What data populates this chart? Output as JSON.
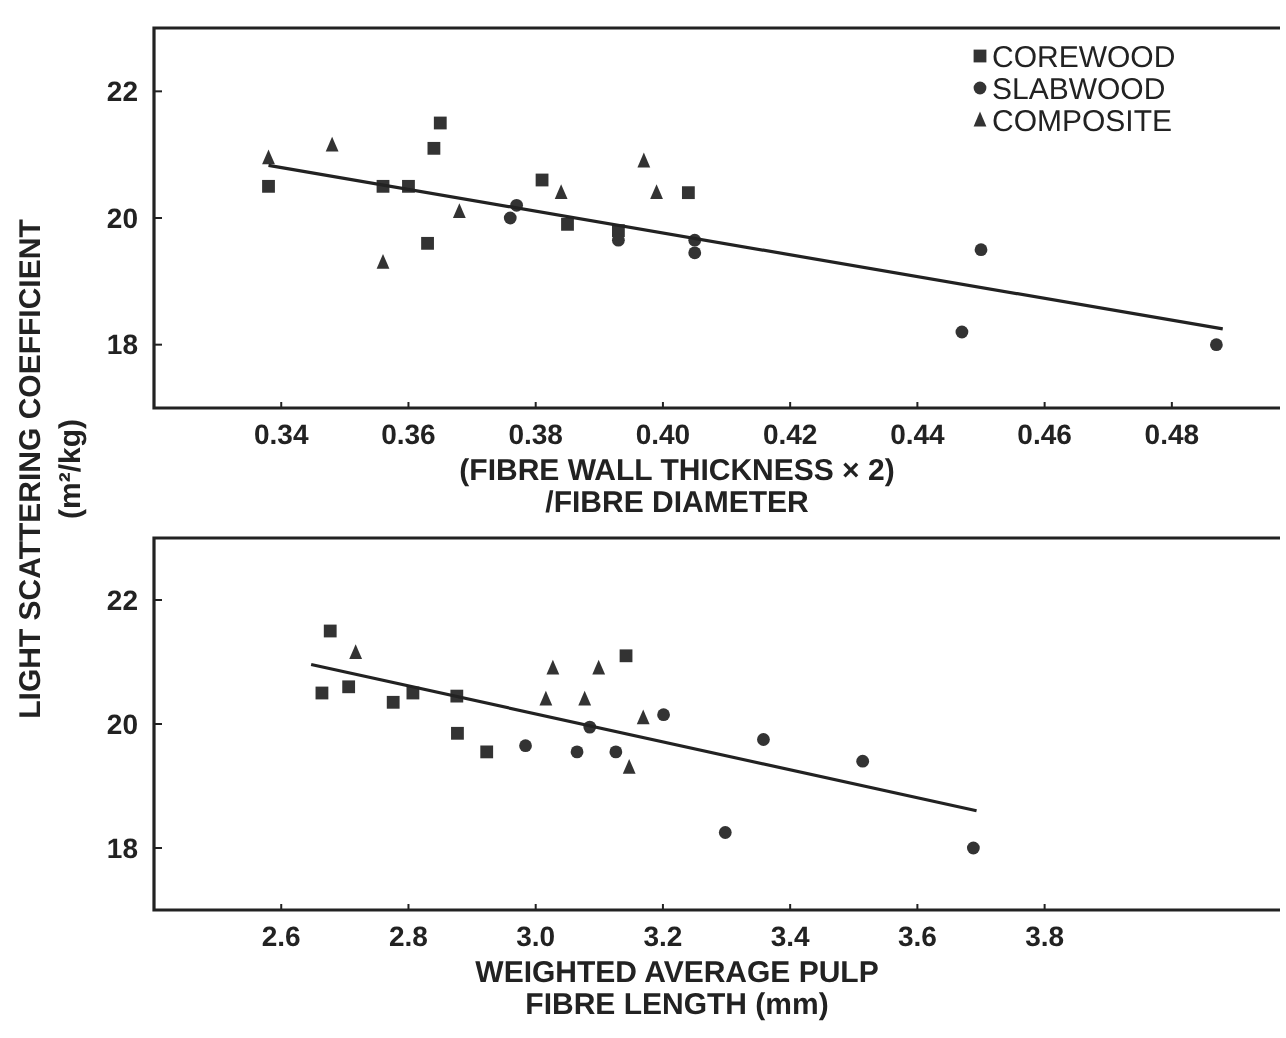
{
  "chart_data": [
    {
      "type": "scatter",
      "xlabel": "(FIBRE WALL THICKNESS × 2)\n/FIBRE DIAMETER",
      "ylabel": "LIGHT SCATTERING COEFFICIENT\n(m²/kg)",
      "xlim": [
        0.32,
        0.497
      ],
      "ylim": [
        17,
        23
      ],
      "xticks": [
        0.34,
        0.36,
        0.38,
        {
          "value": 0.4,
          "label": "0.40"
        },
        0.42,
        0.44,
        0.46,
        0.48
      ],
      "yticks": [
        18,
        20,
        22
      ],
      "legend": "top right",
      "grid": false,
      "series": [
        {
          "name": "COREWOOD",
          "marker": "square",
          "color": "#333333",
          "x": [
            0.338,
            0.356,
            0.36,
            0.363,
            0.364,
            0.365,
            0.381,
            0.385,
            0.393,
            0.404
          ],
          "values": [
            20.5,
            20.5,
            20.5,
            19.6,
            21.1,
            21.5,
            20.6,
            19.9,
            19.8,
            20.4
          ]
        },
        {
          "name": "SLABWOOD",
          "marker": "circle",
          "color": "#333333",
          "x": [
            0.376,
            0.377,
            0.393,
            0.405,
            0.405,
            0.447,
            0.45,
            0.487
          ],
          "values": [
            20.0,
            20.2,
            19.65,
            19.65,
            19.45,
            18.2,
            19.5,
            18.0
          ]
        },
        {
          "name": "COMPOSITE",
          "marker": "triangle",
          "color": "#333333",
          "x": [
            0.338,
            0.348,
            0.356,
            0.368,
            0.384,
            0.397,
            0.399
          ],
          "values": [
            20.95,
            21.15,
            19.3,
            20.1,
            20.4,
            20.9,
            20.4
          ]
        },
        {
          "type": "line",
          "marker": "none",
          "color": "#222222",
          "x": [
            0.338,
            0.488
          ],
          "values": [
            20.83,
            18.25
          ]
        }
      ]
    },
    {
      "type": "scatter",
      "xlabel": "WEIGHTED AVERAGE PULP\nFIBRE LENGTH (mm)",
      "xlim": [
        2.4,
        4.17
      ],
      "ylim": [
        17,
        23
      ],
      "xticks": [
        2.6,
        2.8,
        {
          "value": 3.0,
          "label": "3.0"
        },
        3.2,
        3.4,
        3.6,
        3.8
      ],
      "yticks": [
        18,
        20,
        22
      ],
      "grid": false,
      "series": [
        {
          "marker": "square",
          "color": "#333333",
          "x": [
            2.664,
            2.677,
            2.706,
            2.776,
            2.807,
            2.876,
            2.877,
            2.923,
            3.142
          ],
          "values": [
            20.5,
            21.5,
            20.6,
            20.35,
            20.5,
            20.45,
            19.85,
            19.55,
            21.1
          ]
        },
        {
          "marker": "circle",
          "color": "#333333",
          "x": [
            2.984,
            3.065,
            3.085,
            3.126,
            3.201,
            3.358,
            3.514,
            3.298,
            3.688
          ],
          "values": [
            19.65,
            19.55,
            19.95,
            19.55,
            20.15,
            19.75,
            19.4,
            18.25,
            18.0
          ]
        },
        {
          "marker": "triangle",
          "color": "#333333",
          "x": [
            2.717,
            3.027,
            3.016,
            3.077,
            3.099,
            3.169,
            3.147
          ],
          "values": [
            21.15,
            20.9,
            20.4,
            20.4,
            20.9,
            20.1,
            19.3
          ]
        },
        {
          "type": "line",
          "marker": "none",
          "color": "#222222",
          "x": [
            2.647,
            3.693
          ],
          "values": [
            20.96,
            18.6
          ]
        }
      ]
    }
  ]
}
